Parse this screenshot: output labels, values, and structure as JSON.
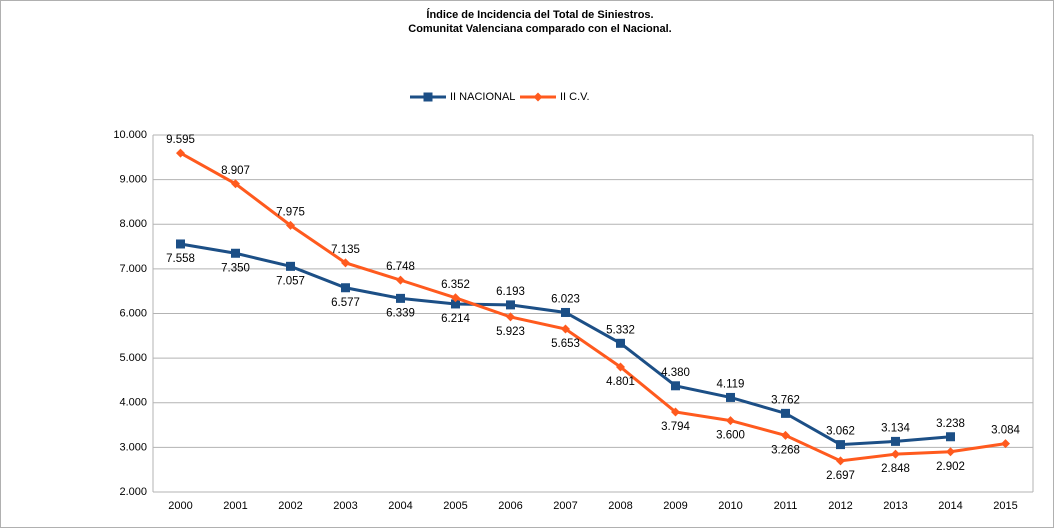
{
  "chart_data": {
    "type": "line",
    "title": [
      "Índice de Incidencia del Total de Siniestros.",
      "Comunitat Valenciana comparado con el Nacional."
    ],
    "categories": [
      "2000",
      "2001",
      "2002",
      "2003",
      "2004",
      "2005",
      "2006",
      "2007",
      "2008",
      "2009",
      "2010",
      "2011",
      "2012",
      "2013",
      "2014",
      "2015"
    ],
    "series": [
      {
        "name": "II NACIONAL",
        "color": "#1c4f86",
        "marker": "square",
        "values": [
          7558,
          7350,
          7057,
          6577,
          6339,
          6214,
          6193,
          6023,
          5332,
          4380,
          4119,
          3762,
          3062,
          3134,
          3238,
          null
        ],
        "value_labels": [
          "7.558",
          "7.350",
          "7.057",
          "6.577",
          "6.339",
          "6.214",
          "6.193",
          "6.023",
          "5.332",
          "4.380",
          "4.119",
          "3.762",
          "3.062",
          "3.134",
          "3.238",
          null
        ]
      },
      {
        "name": "II C.V.",
        "color": "#ff5a1e",
        "marker": "diamond",
        "values": [
          9595,
          8907,
          7975,
          7135,
          6748,
          6352,
          5923,
          5653,
          4801,
          3794,
          3600,
          3268,
          2697,
          2848,
          2902,
          3084
        ],
        "value_labels": [
          "9.595",
          "8.907",
          "7.975",
          "7.135",
          "6.748",
          "6.352",
          "5.923",
          "5.653",
          "4.801",
          "3.794",
          "3.600",
          "3.268",
          "2.697",
          "2.848",
          "2.902",
          "3.084"
        ]
      }
    ],
    "ylim": [
      2000,
      10000
    ],
    "yticks": [
      {
        "value": 2000,
        "label": "2.000"
      },
      {
        "value": 3000,
        "label": "3.000"
      },
      {
        "value": 4000,
        "label": "4.000"
      },
      {
        "value": 5000,
        "label": "5.000"
      },
      {
        "value": 6000,
        "label": "6.000"
      },
      {
        "value": 7000,
        "label": "7.000"
      },
      {
        "value": 8000,
        "label": "8.000"
      },
      {
        "value": 9000,
        "label": "9.000"
      },
      {
        "value": 10000,
        "label": "10.000"
      }
    ],
    "grid": true,
    "legend": "top"
  }
}
